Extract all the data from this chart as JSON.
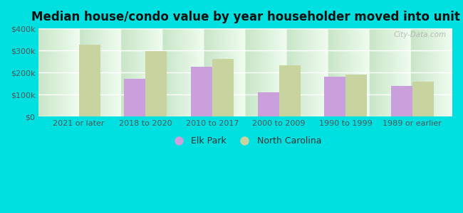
{
  "title": "Median house/condo value by year householder moved into unit",
  "categories": [
    "2021 or later",
    "2018 to 2020",
    "2010 to 2017",
    "2000 to 2009",
    "1990 to 1999",
    "1989 or earlier"
  ],
  "elk_park": [
    null,
    170000,
    225000,
    110000,
    180000,
    140000
  ],
  "north_carolina": [
    325000,
    298000,
    263000,
    232000,
    192000,
    158000
  ],
  "elk_park_color": "#c9a0dc",
  "north_carolina_color": "#c8d4a0",
  "bg_top_color": "#c8e6c8",
  "bg_bottom_color": "#f0faf0",
  "outer_background": "#00e0e0",
  "ylim": [
    0,
    400000
  ],
  "yticks": [
    0,
    100000,
    200000,
    300000,
    400000
  ],
  "ytick_labels": [
    "$0",
    "$100k",
    "$200k",
    "$300k",
    "$400k"
  ],
  "bar_width": 0.32,
  "legend_elk_park": "Elk Park",
  "legend_north_carolina": "North Carolina",
  "watermark": "City-Data.com",
  "title_fontsize": 12,
  "tick_fontsize": 8,
  "grid_color": "#ffffff",
  "tick_color": "#555555"
}
